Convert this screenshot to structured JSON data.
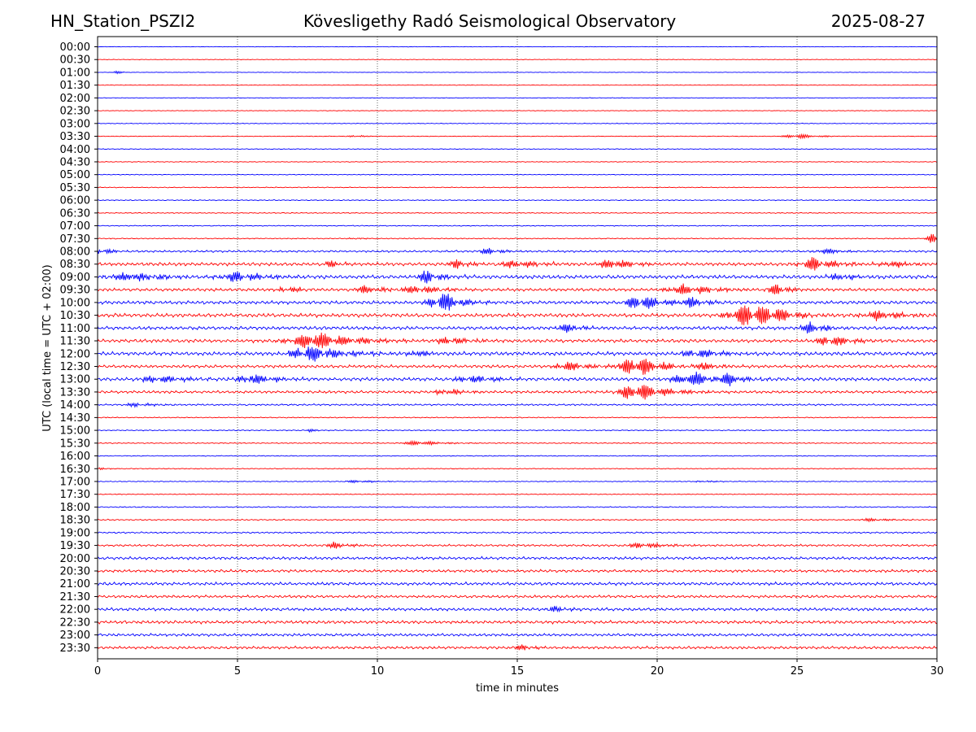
{
  "header": {
    "station": "HN_Station_PSZI2",
    "observatory": "Kövesligethy Radó Seismological Observatory",
    "date": "2025-08-27"
  },
  "chart_data": {
    "type": "line",
    "title": "Kövesligethy Radó Seismological Observatory",
    "xlabel": "time in minutes",
    "ylabel": "UTC (local time = UTC + 02:00)",
    "xlim": [
      0,
      30
    ],
    "x_ticks": [
      "0",
      "5",
      "10",
      "15",
      "20",
      "25",
      "30"
    ],
    "grid_x": true,
    "row_labels": [
      "00:00",
      "00:30",
      "01:00",
      "01:30",
      "02:00",
      "02:30",
      "03:00",
      "03:30",
      "04:00",
      "04:30",
      "05:00",
      "05:30",
      "06:00",
      "06:30",
      "07:00",
      "07:30",
      "08:00",
      "08:30",
      "09:00",
      "09:30",
      "10:00",
      "10:30",
      "11:00",
      "11:30",
      "12:00",
      "12:30",
      "13:00",
      "13:30",
      "14:00",
      "14:30",
      "15:00",
      "15:30",
      "16:00",
      "16:30",
      "17:00",
      "17:30",
      "18:00",
      "18:30",
      "19:00",
      "19:30",
      "20:00",
      "20:30",
      "21:00",
      "21:30",
      "22:00",
      "22:30",
      "23:00",
      "23:30"
    ],
    "row_colors": [
      "#0000ff",
      "#ff0000"
    ],
    "row_noise": [
      0.3,
      0.3,
      0.3,
      0.3,
      0.35,
      0.35,
      0.4,
      0.4,
      0.4,
      0.45,
      0.45,
      0.5,
      0.55,
      0.55,
      0.55,
      0.6,
      1.2,
      2.0,
      2.2,
      1.8,
      2.0,
      2.2,
      2.0,
      2.0,
      2.2,
      1.8,
      2.0,
      1.6,
      1.0,
      0.6,
      0.6,
      0.6,
      0.5,
      0.5,
      0.5,
      0.5,
      0.6,
      0.7,
      0.9,
      1.2,
      1.6,
      1.6,
      1.8,
      1.6,
      1.8,
      1.8,
      1.6,
      1.6
    ],
    "events": [
      {
        "row": 2,
        "t": 0.7,
        "amp": 2,
        "dur": 0.15
      },
      {
        "row": 7,
        "t": 9.2,
        "amp": 2,
        "dur": 0.3
      },
      {
        "row": 7,
        "t": 25.0,
        "amp": 3.5,
        "dur": 0.6
      },
      {
        "row": 15,
        "t": 9.2,
        "amp": 1.5,
        "dur": 0.3
      },
      {
        "row": 15,
        "t": 29.9,
        "amp": 9,
        "dur": 0.3
      },
      {
        "row": 16,
        "t": 0.1,
        "amp": 6,
        "dur": 0.3
      },
      {
        "row": 16,
        "t": 14.0,
        "amp": 5,
        "dur": 0.4
      },
      {
        "row": 16,
        "t": 26.0,
        "amp": 4,
        "dur": 0.5
      },
      {
        "row": 17,
        "t": 8.4,
        "amp": 5,
        "dur": 0.3
      },
      {
        "row": 17,
        "t": 12.9,
        "amp": 6,
        "dur": 0.4
      },
      {
        "row": 17,
        "t": 15.0,
        "amp": 5,
        "dur": 0.8
      },
      {
        "row": 17,
        "t": 18.4,
        "amp": 8,
        "dur": 0.6
      },
      {
        "row": 17,
        "t": 25.6,
        "amp": 9,
        "dur": 0.7
      },
      {
        "row": 17,
        "t": 28.4,
        "amp": 5,
        "dur": 0.5
      },
      {
        "row": 18,
        "t": 1.2,
        "amp": 6,
        "dur": 1.0
      },
      {
        "row": 18,
        "t": 5.0,
        "amp": 7,
        "dur": 0.8
      },
      {
        "row": 18,
        "t": 11.8,
        "amp": 8,
        "dur": 0.5
      },
      {
        "row": 18,
        "t": 26.5,
        "amp": 4,
        "dur": 0.6
      },
      {
        "row": 19,
        "t": 6.8,
        "amp": 5,
        "dur": 0.4
      },
      {
        "row": 19,
        "t": 9.6,
        "amp": 5,
        "dur": 0.6
      },
      {
        "row": 19,
        "t": 11.5,
        "amp": 5,
        "dur": 0.8
      },
      {
        "row": 19,
        "t": 21.0,
        "amp": 7,
        "dur": 0.9
      },
      {
        "row": 19,
        "t": 24.3,
        "amp": 8,
        "dur": 0.4
      },
      {
        "row": 20,
        "t": 12.3,
        "amp": 14,
        "dur": 0.6
      },
      {
        "row": 20,
        "t": 19.4,
        "amp": 12,
        "dur": 0.6
      },
      {
        "row": 20,
        "t": 21.2,
        "amp": 6,
        "dur": 0.5
      },
      {
        "row": 21,
        "t": 23.2,
        "amp": 14,
        "dur": 0.9
      },
      {
        "row": 21,
        "t": 24.0,
        "amp": 9,
        "dur": 0.5
      },
      {
        "row": 21,
        "t": 27.9,
        "amp": 6,
        "dur": 0.8
      },
      {
        "row": 22,
        "t": 16.7,
        "amp": 6,
        "dur": 0.5
      },
      {
        "row": 22,
        "t": 25.5,
        "amp": 7,
        "dur": 0.5
      },
      {
        "row": 23,
        "t": 7.8,
        "amp": 12,
        "dur": 1.2
      },
      {
        "row": 23,
        "t": 12.6,
        "amp": 6,
        "dur": 0.6
      },
      {
        "row": 23,
        "t": 26.2,
        "amp": 8,
        "dur": 0.6
      },
      {
        "row": 24,
        "t": 7.6,
        "amp": 11,
        "dur": 1.0
      },
      {
        "row": 24,
        "t": 11.4,
        "amp": 5,
        "dur": 0.4
      },
      {
        "row": 24,
        "t": 21.5,
        "amp": 6,
        "dur": 0.8
      },
      {
        "row": 25,
        "t": 16.8,
        "amp": 7,
        "dur": 0.6
      },
      {
        "row": 25,
        "t": 19.3,
        "amp": 13,
        "dur": 0.9
      },
      {
        "row": 25,
        "t": 21.5,
        "amp": 7,
        "dur": 0.6
      },
      {
        "row": 26,
        "t": 2.2,
        "amp": 5,
        "dur": 0.9
      },
      {
        "row": 26,
        "t": 5.5,
        "amp": 7,
        "dur": 0.7
      },
      {
        "row": 26,
        "t": 13.4,
        "amp": 5,
        "dur": 0.8
      },
      {
        "row": 26,
        "t": 21.3,
        "amp": 9,
        "dur": 1.0
      },
      {
        "row": 26,
        "t": 22.5,
        "amp": 10,
        "dur": 0.5
      },
      {
        "row": 27,
        "t": 12.5,
        "amp": 4,
        "dur": 0.6
      },
      {
        "row": 27,
        "t": 19.3,
        "amp": 12,
        "dur": 0.9
      },
      {
        "row": 28,
        "t": 1.4,
        "amp": 3,
        "dur": 0.5
      },
      {
        "row": 30,
        "t": 7.6,
        "amp": 2,
        "dur": 0.2
      },
      {
        "row": 31,
        "t": 11.5,
        "amp": 3.5,
        "dur": 0.7
      },
      {
        "row": 33,
        "t": 0.2,
        "amp": 2,
        "dur": 0.2
      },
      {
        "row": 34,
        "t": 9.3,
        "amp": 2,
        "dur": 0.5
      },
      {
        "row": 34,
        "t": 21.7,
        "amp": 1.5,
        "dur": 0.4
      },
      {
        "row": 37,
        "t": 27.7,
        "amp": 2,
        "dur": 0.6
      },
      {
        "row": 39,
        "t": 8.5,
        "amp": 4,
        "dur": 0.5
      },
      {
        "row": 39,
        "t": 19.5,
        "amp": 4,
        "dur": 0.7
      },
      {
        "row": 44,
        "t": 16.4,
        "amp": 4,
        "dur": 0.4
      },
      {
        "row": 47,
        "t": 15.2,
        "amp": 4,
        "dur": 0.4
      }
    ]
  }
}
